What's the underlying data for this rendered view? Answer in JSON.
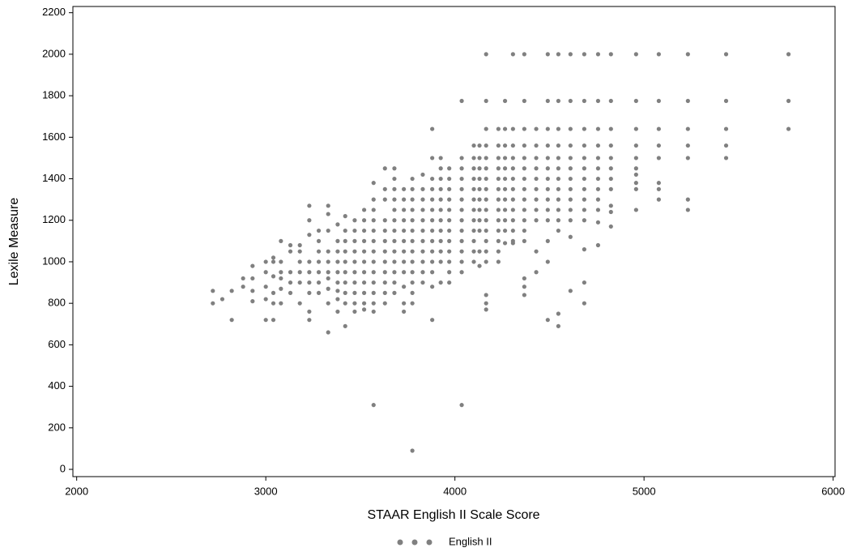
{
  "chart_data": {
    "type": "scatter",
    "x_label": "STAAR English II Scale Score",
    "y_label": "Lexile Measure",
    "xlim": [
      1980,
      6010
    ],
    "xticks": [
      2000,
      3000,
      4000,
      5000,
      6000
    ],
    "ylim": [
      -35,
      2230
    ],
    "yticks": [
      0,
      200,
      400,
      600,
      800,
      1000,
      1200,
      1400,
      1600,
      1800,
      2000,
      2200
    ],
    "grid": false,
    "legend": "bottom",
    "series": [
      {
        "name": "English II",
        "color": "#808080",
        "x": [
          2720,
          2720,
          2770,
          2820,
          2820,
          2880,
          2880,
          2930,
          2930,
          2930,
          2930,
          3000,
          3000,
          3000,
          3000,
          3000,
          3040,
          3040,
          3040,
          3040,
          3040,
          3040,
          3080,
          3080,
          3080,
          3080,
          3080,
          3080,
          3130,
          3130,
          3130,
          3130,
          3130,
          3180,
          3180,
          3180,
          3180,
          3180,
          3180,
          3230,
          3230,
          3230,
          3230,
          3230,
          3230,
          3230,
          3230,
          3230,
          3280,
          3280,
          3280,
          3280,
          3280,
          3280,
          3280,
          3330,
          3330,
          3330,
          3330,
          3330,
          3330,
          3330,
          3330,
          3330,
          3330,
          3380,
          3380,
          3380,
          3380,
          3380,
          3380,
          3380,
          3380,
          3380,
          3420,
          3420,
          3420,
          3420,
          3420,
          3420,
          3420,
          3420,
          3420,
          3420,
          3470,
          3470,
          3470,
          3470,
          3470,
          3470,
          3470,
          3470,
          3470,
          3470,
          3520,
          3520,
          3520,
          3520,
          3520,
          3520,
          3520,
          3520,
          3520,
          3520,
          3520,
          3570,
          3570,
          3570,
          3570,
          3570,
          3570,
          3570,
          3570,
          3570,
          3570,
          3570,
          3570,
          3570,
          3570,
          3630,
          3630,
          3630,
          3630,
          3630,
          3630,
          3630,
          3630,
          3630,
          3630,
          3630,
          3630,
          3680,
          3680,
          3680,
          3680,
          3680,
          3680,
          3680,
          3680,
          3680,
          3680,
          3680,
          3680,
          3680,
          3730,
          3730,
          3730,
          3730,
          3730,
          3730,
          3730,
          3730,
          3730,
          3730,
          3730,
          3730,
          3775,
          3775,
          3775,
          3775,
          3775,
          3775,
          3775,
          3775,
          3775,
          3775,
          3775,
          3775,
          3775,
          3775,
          3830,
          3830,
          3830,
          3830,
          3830,
          3830,
          3830,
          3830,
          3830,
          3830,
          3830,
          3880,
          3880,
          3880,
          3880,
          3880,
          3880,
          3880,
          3880,
          3880,
          3880,
          3880,
          3880,
          3880,
          3880,
          3925,
          3925,
          3925,
          3925,
          3925,
          3925,
          3925,
          3925,
          3925,
          3925,
          3925,
          3925,
          3970,
          3970,
          3970,
          3970,
          3970,
          3970,
          3970,
          3970,
          3970,
          3970,
          3970,
          3970,
          4036,
          4036,
          4036,
          4036,
          4036,
          4036,
          4036,
          4036,
          4036,
          4036,
          4036,
          4036,
          4036,
          4036,
          4100,
          4100,
          4100,
          4100,
          4100,
          4100,
          4100,
          4100,
          4100,
          4100,
          4100,
          4100,
          4130,
          4130,
          4130,
          4130,
          4130,
          4130,
          4130,
          4130,
          4130,
          4130,
          4130,
          4165,
          4165,
          4165,
          4165,
          4165,
          4165,
          4165,
          4165,
          4165,
          4165,
          4165,
          4165,
          4165,
          4165,
          4165,
          4165,
          4165,
          4165,
          4230,
          4230,
          4230,
          4230,
          4230,
          4230,
          4230,
          4230,
          4230,
          4230,
          4230,
          4230,
          4230,
          4265,
          4265,
          4265,
          4265,
          4265,
          4265,
          4265,
          4265,
          4265,
          4265,
          4265,
          4265,
          4307,
          4307,
          4307,
          4307,
          4307,
          4307,
          4307,
          4307,
          4307,
          4307,
          4307,
          4307,
          4307,
          4367,
          4367,
          4367,
          4367,
          4367,
          4367,
          4367,
          4367,
          4367,
          4367,
          4367,
          4367,
          4367,
          4367,
          4367,
          4367,
          4430,
          4430,
          4430,
          4430,
          4430,
          4430,
          4430,
          4430,
          4430,
          4430,
          4430,
          4491,
          4491,
          4491,
          4491,
          4491,
          4491,
          4491,
          4491,
          4491,
          4491,
          4491,
          4491,
          4491,
          4491,
          4547,
          4547,
          4547,
          4547,
          4547,
          4547,
          4547,
          4547,
          4547,
          4547,
          4547,
          4547,
          4547,
          4547,
          4611,
          4611,
          4611,
          4611,
          4611,
          4611,
          4611,
          4611,
          4611,
          4611,
          4611,
          4611,
          4611,
          4684,
          4684,
          4684,
          4684,
          4684,
          4684,
          4684,
          4684,
          4684,
          4684,
          4684,
          4684,
          4684,
          4684,
          4757,
          4757,
          4757,
          4757,
          4757,
          4757,
          4757,
          4757,
          4757,
          4757,
          4757,
          4757,
          4825,
          4825,
          4825,
          4825,
          4825,
          4825,
          4825,
          4825,
          4825,
          4825,
          4825,
          4958,
          4958,
          4958,
          4958,
          4958,
          4958,
          4958,
          4958,
          4958,
          4958,
          5078,
          5078,
          5078,
          5078,
          5078,
          5078,
          5078,
          5078,
          5232,
          5232,
          5232,
          5232,
          5232,
          5232,
          5232,
          5434,
          5434,
          5434,
          5434,
          5434,
          5764,
          5764,
          5764
        ],
        "values": [
          860,
          800,
          820,
          860,
          720,
          920,
          880,
          980,
          920,
          860,
          810,
          1000,
          950,
          880,
          820,
          720,
          1020,
          1000,
          930,
          850,
          800,
          720,
          1100,
          1000,
          950,
          920,
          870,
          800,
          1080,
          1050,
          950,
          900,
          850,
          1080,
          1050,
          1000,
          950,
          900,
          800,
          1270,
          1200,
          1130,
          1000,
          950,
          900,
          850,
          760,
          720,
          1150,
          1100,
          1050,
          1000,
          950,
          900,
          850,
          1270,
          1230,
          1150,
          1050,
          1000,
          950,
          920,
          870,
          800,
          660,
          1180,
          1100,
          1050,
          1000,
          950,
          900,
          860,
          820,
          760,
          1220,
          1150,
          1100,
          1050,
          1000,
          950,
          900,
          850,
          800,
          690,
          1200,
          1150,
          1100,
          1050,
          1000,
          950,
          900,
          850,
          800,
          760,
          1250,
          1200,
          1150,
          1100,
          1050,
          1000,
          950,
          900,
          850,
          800,
          770,
          1380,
          1300,
          1250,
          1200,
          1150,
          1100,
          1050,
          1000,
          950,
          900,
          850,
          800,
          760,
          310,
          1450,
          1350,
          1300,
          1200,
          1150,
          1100,
          1050,
          1000,
          950,
          900,
          850,
          800,
          1450,
          1400,
          1350,
          1300,
          1250,
          1200,
          1150,
          1100,
          1050,
          1000,
          950,
          900,
          850,
          1350,
          1300,
          1250,
          1200,
          1150,
          1100,
          1050,
          1000,
          950,
          880,
          800,
          760,
          1400,
          1350,
          1300,
          1250,
          1200,
          1150,
          1100,
          1050,
          1000,
          950,
          900,
          850,
          800,
          90,
          1420,
          1350,
          1300,
          1250,
          1200,
          1150,
          1100,
          1050,
          1000,
          950,
          900,
          1640,
          1500,
          1400,
          1350,
          1300,
          1250,
          1200,
          1150,
          1100,
          1050,
          1000,
          950,
          880,
          720,
          1500,
          1450,
          1400,
          1350,
          1300,
          1250,
          1200,
          1150,
          1100,
          1050,
          1000,
          900,
          1450,
          1400,
          1350,
          1300,
          1250,
          1200,
          1150,
          1100,
          1050,
          1000,
          950,
          900,
          1775,
          1500,
          1450,
          1400,
          1350,
          1300,
          1250,
          1200,
          1150,
          1100,
          1050,
          1000,
          950,
          310,
          1560,
          1500,
          1450,
          1400,
          1350,
          1300,
          1250,
          1200,
          1150,
          1100,
          1050,
          1000,
          1560,
          1500,
          1450,
          1400,
          1350,
          1300,
          1250,
          1200,
          1150,
          1050,
          980,
          2000,
          1775,
          1640,
          1560,
          1500,
          1450,
          1400,
          1350,
          1300,
          1250,
          1200,
          1150,
          1100,
          1050,
          1000,
          840,
          800,
          770,
          1640,
          1560,
          1500,
          1450,
          1400,
          1350,
          1300,
          1250,
          1200,
          1150,
          1100,
          1050,
          1000,
          1775,
          1640,
          1560,
          1500,
          1450,
          1400,
          1350,
          1300,
          1250,
          1200,
          1150,
          1090,
          2000,
          1640,
          1560,
          1500,
          1450,
          1400,
          1350,
          1300,
          1250,
          1200,
          1150,
          1100,
          1090,
          2000,
          1775,
          1640,
          1560,
          1500,
          1450,
          1400,
          1350,
          1300,
          1250,
          1200,
          1150,
          1100,
          920,
          880,
          840,
          1640,
          1560,
          1500,
          1450,
          1400,
          1350,
          1300,
          1250,
          1200,
          1050,
          950,
          2000,
          1775,
          1640,
          1560,
          1500,
          1450,
          1400,
          1350,
          1300,
          1250,
          1200,
          1100,
          1000,
          720,
          2000,
          1775,
          1640,
          1560,
          1500,
          1450,
          1400,
          1350,
          1300,
          1250,
          1200,
          1150,
          750,
          690,
          2000,
          1775,
          1640,
          1560,
          1500,
          1450,
          1400,
          1350,
          1300,
          1250,
          1200,
          1120,
          860,
          2000,
          1775,
          1640,
          1560,
          1500,
          1450,
          1400,
          1350,
          1300,
          1250,
          1200,
          1060,
          900,
          800,
          2000,
          1775,
          1640,
          1560,
          1500,
          1450,
          1400,
          1350,
          1300,
          1250,
          1190,
          1080,
          2000,
          1775,
          1640,
          1560,
          1500,
          1450,
          1400,
          1350,
          1270,
          1240,
          1170,
          2000,
          1775,
          1640,
          1560,
          1500,
          1450,
          1420,
          1380,
          1350,
          1250,
          2000,
          1775,
          1640,
          1560,
          1500,
          1380,
          1350,
          1300,
          2000,
          1775,
          1640,
          1560,
          1500,
          1300,
          1250,
          2000,
          1775,
          1640,
          1560,
          1500,
          2000,
          1775,
          1640
        ]
      }
    ]
  }
}
